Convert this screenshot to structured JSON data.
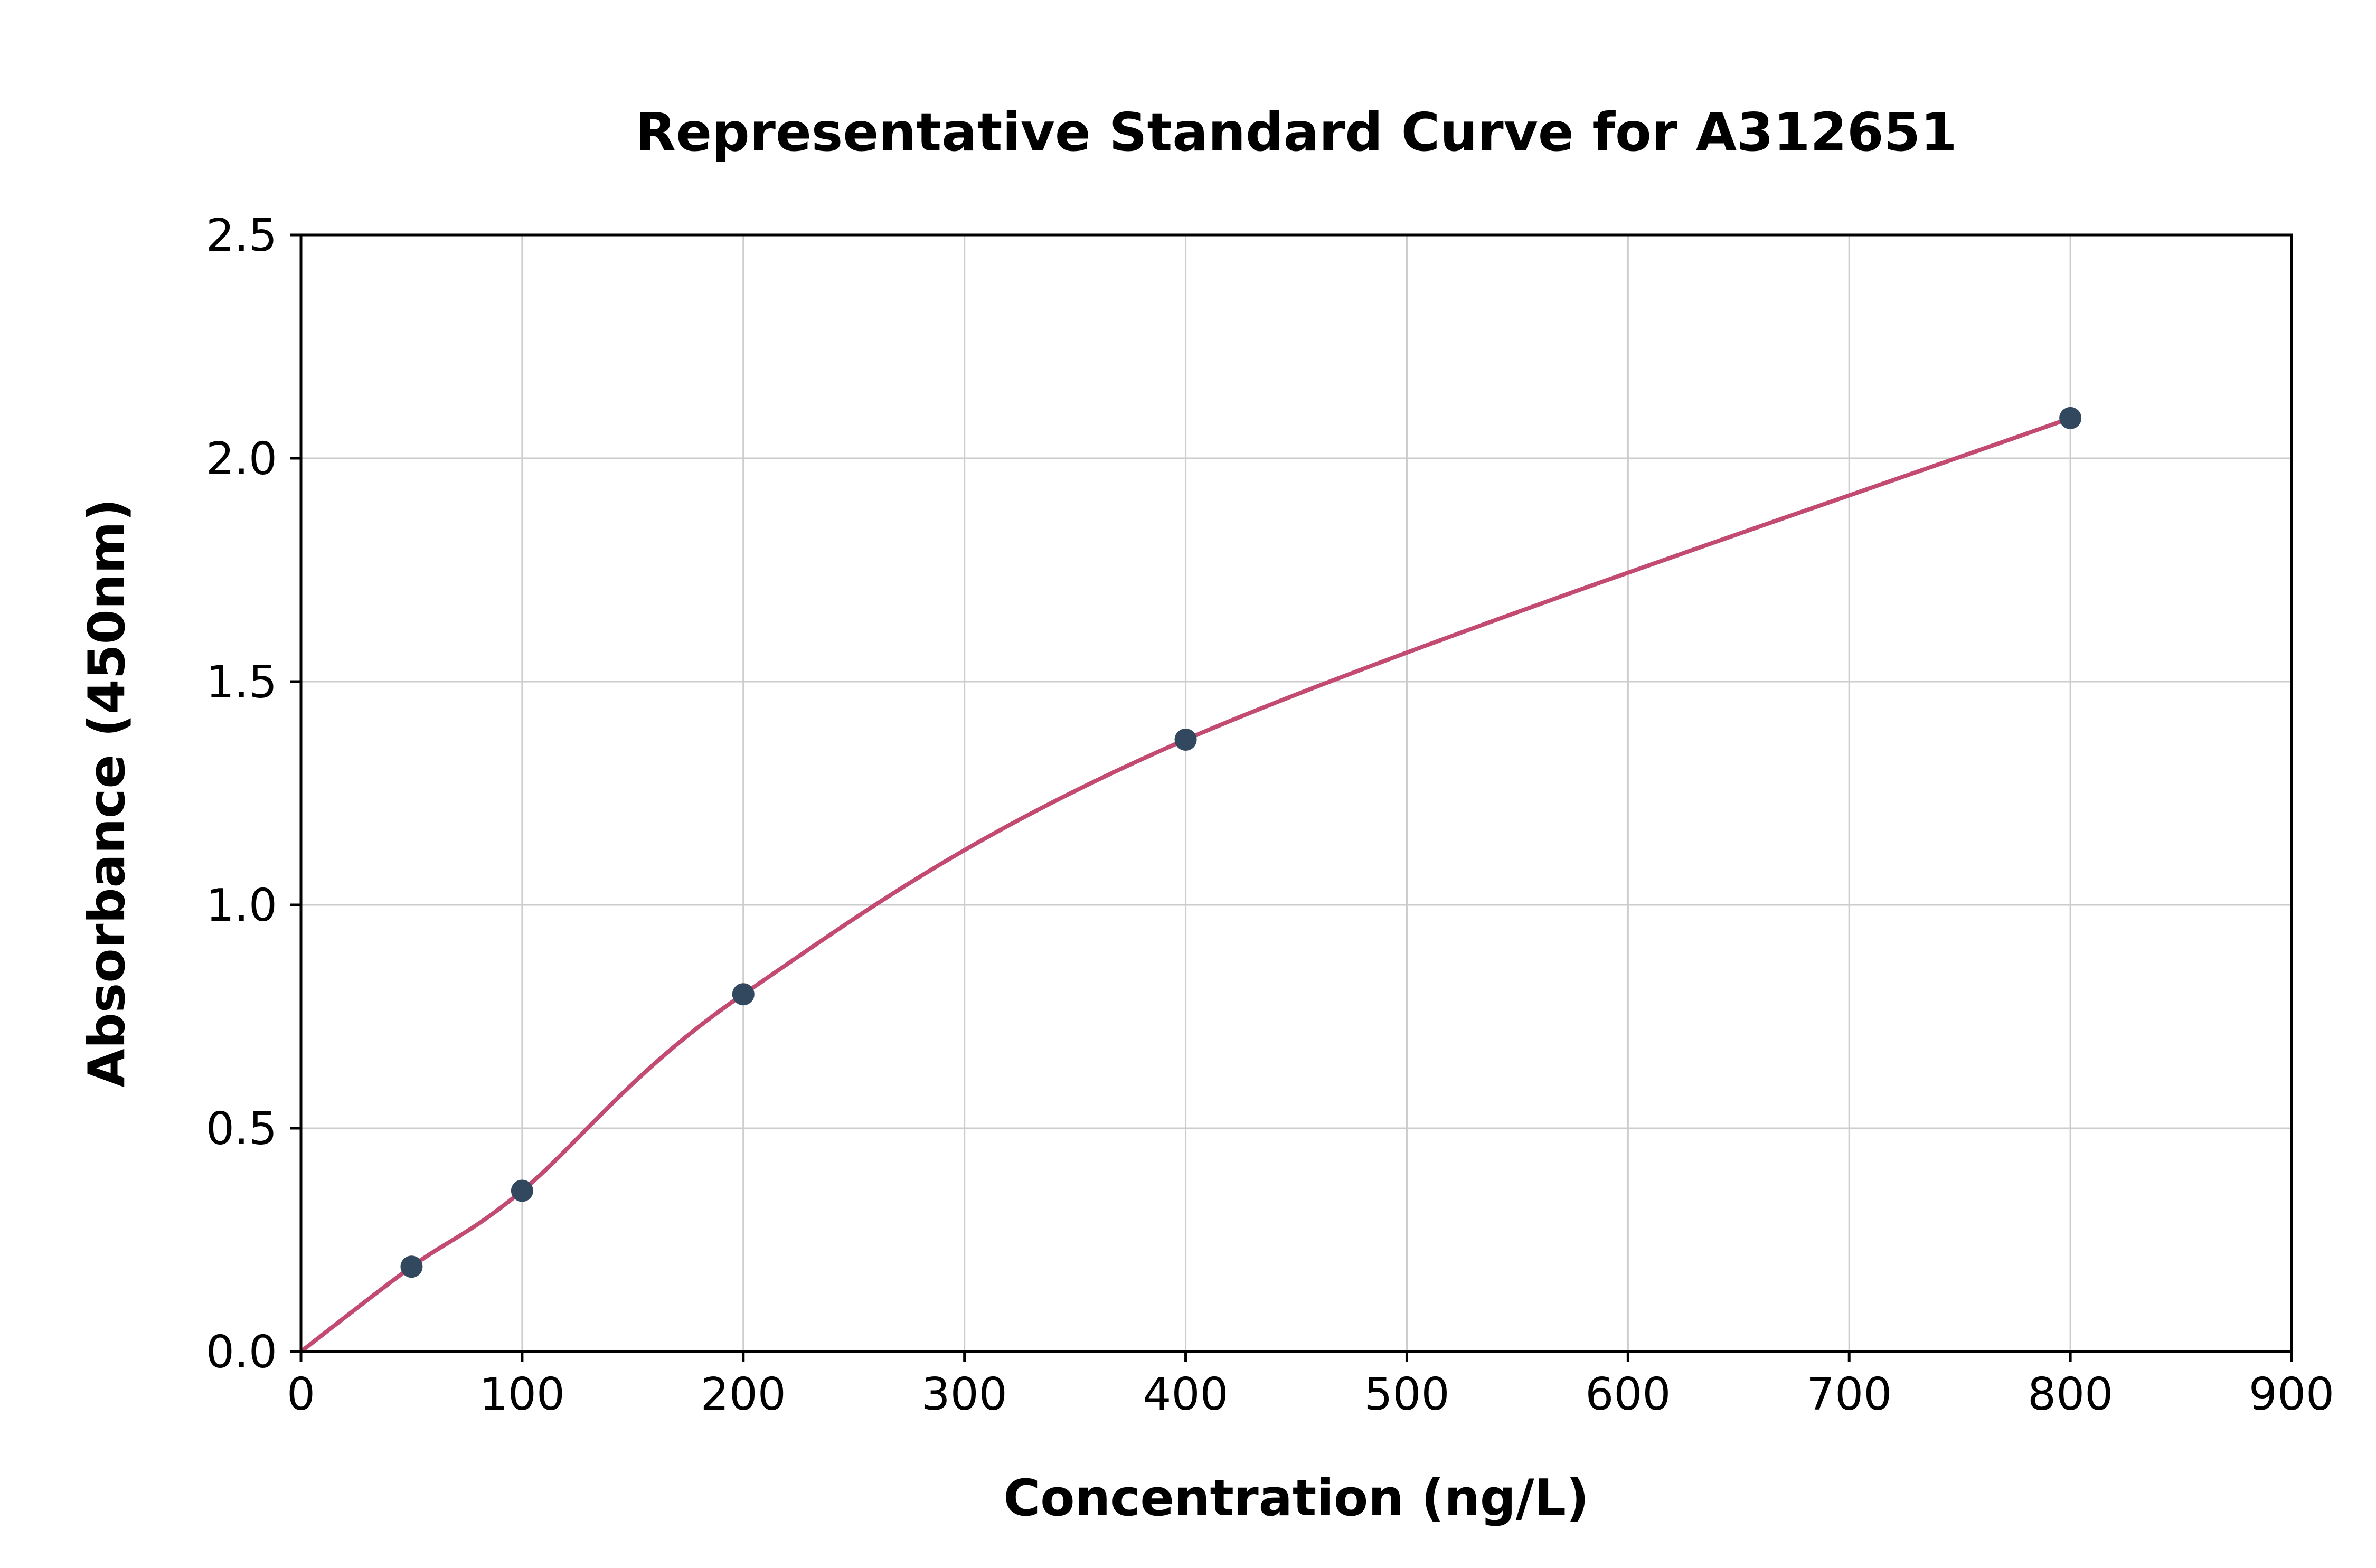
{
  "chart_data": {
    "type": "scatter",
    "title": "Representative Standard Curve for A312651",
    "xlabel": "Concentration (ng/L)",
    "ylabel": "Absorbance (450nm)",
    "xlim": [
      0,
      900
    ],
    "ylim": [
      0,
      2.5
    ],
    "x_ticks": [
      0,
      100,
      200,
      300,
      400,
      500,
      600,
      700,
      800,
      900
    ],
    "x_tick_labels": [
      "0",
      "100",
      "200",
      "300",
      "400",
      "500",
      "600",
      "700",
      "800",
      "900"
    ],
    "y_ticks": [
      0,
      0.5,
      1.0,
      1.5,
      2.0,
      2.5
    ],
    "y_tick_labels": [
      "0.0",
      "0.5",
      "1.0",
      "1.5",
      "2.0",
      "2.5"
    ],
    "grid": true,
    "legend": "none",
    "curve_points": [
      {
        "x": 0,
        "y": 0.0
      },
      {
        "x": 50,
        "y": 0.19
      },
      {
        "x": 100,
        "y": 0.36
      },
      {
        "x": 200,
        "y": 0.8
      },
      {
        "x": 400,
        "y": 1.37
      },
      {
        "x": 800,
        "y": 2.09
      }
    ],
    "marker_points": [
      {
        "x": 50,
        "y": 0.19
      },
      {
        "x": 100,
        "y": 0.36
      },
      {
        "x": 200,
        "y": 0.8
      },
      {
        "x": 400,
        "y": 1.37
      },
      {
        "x": 800,
        "y": 2.09
      }
    ],
    "colors": {
      "curve": "#c34a70",
      "marker": "#31485f",
      "grid": "#cccccc",
      "spine": "#000000",
      "background": "#ffffff"
    }
  }
}
